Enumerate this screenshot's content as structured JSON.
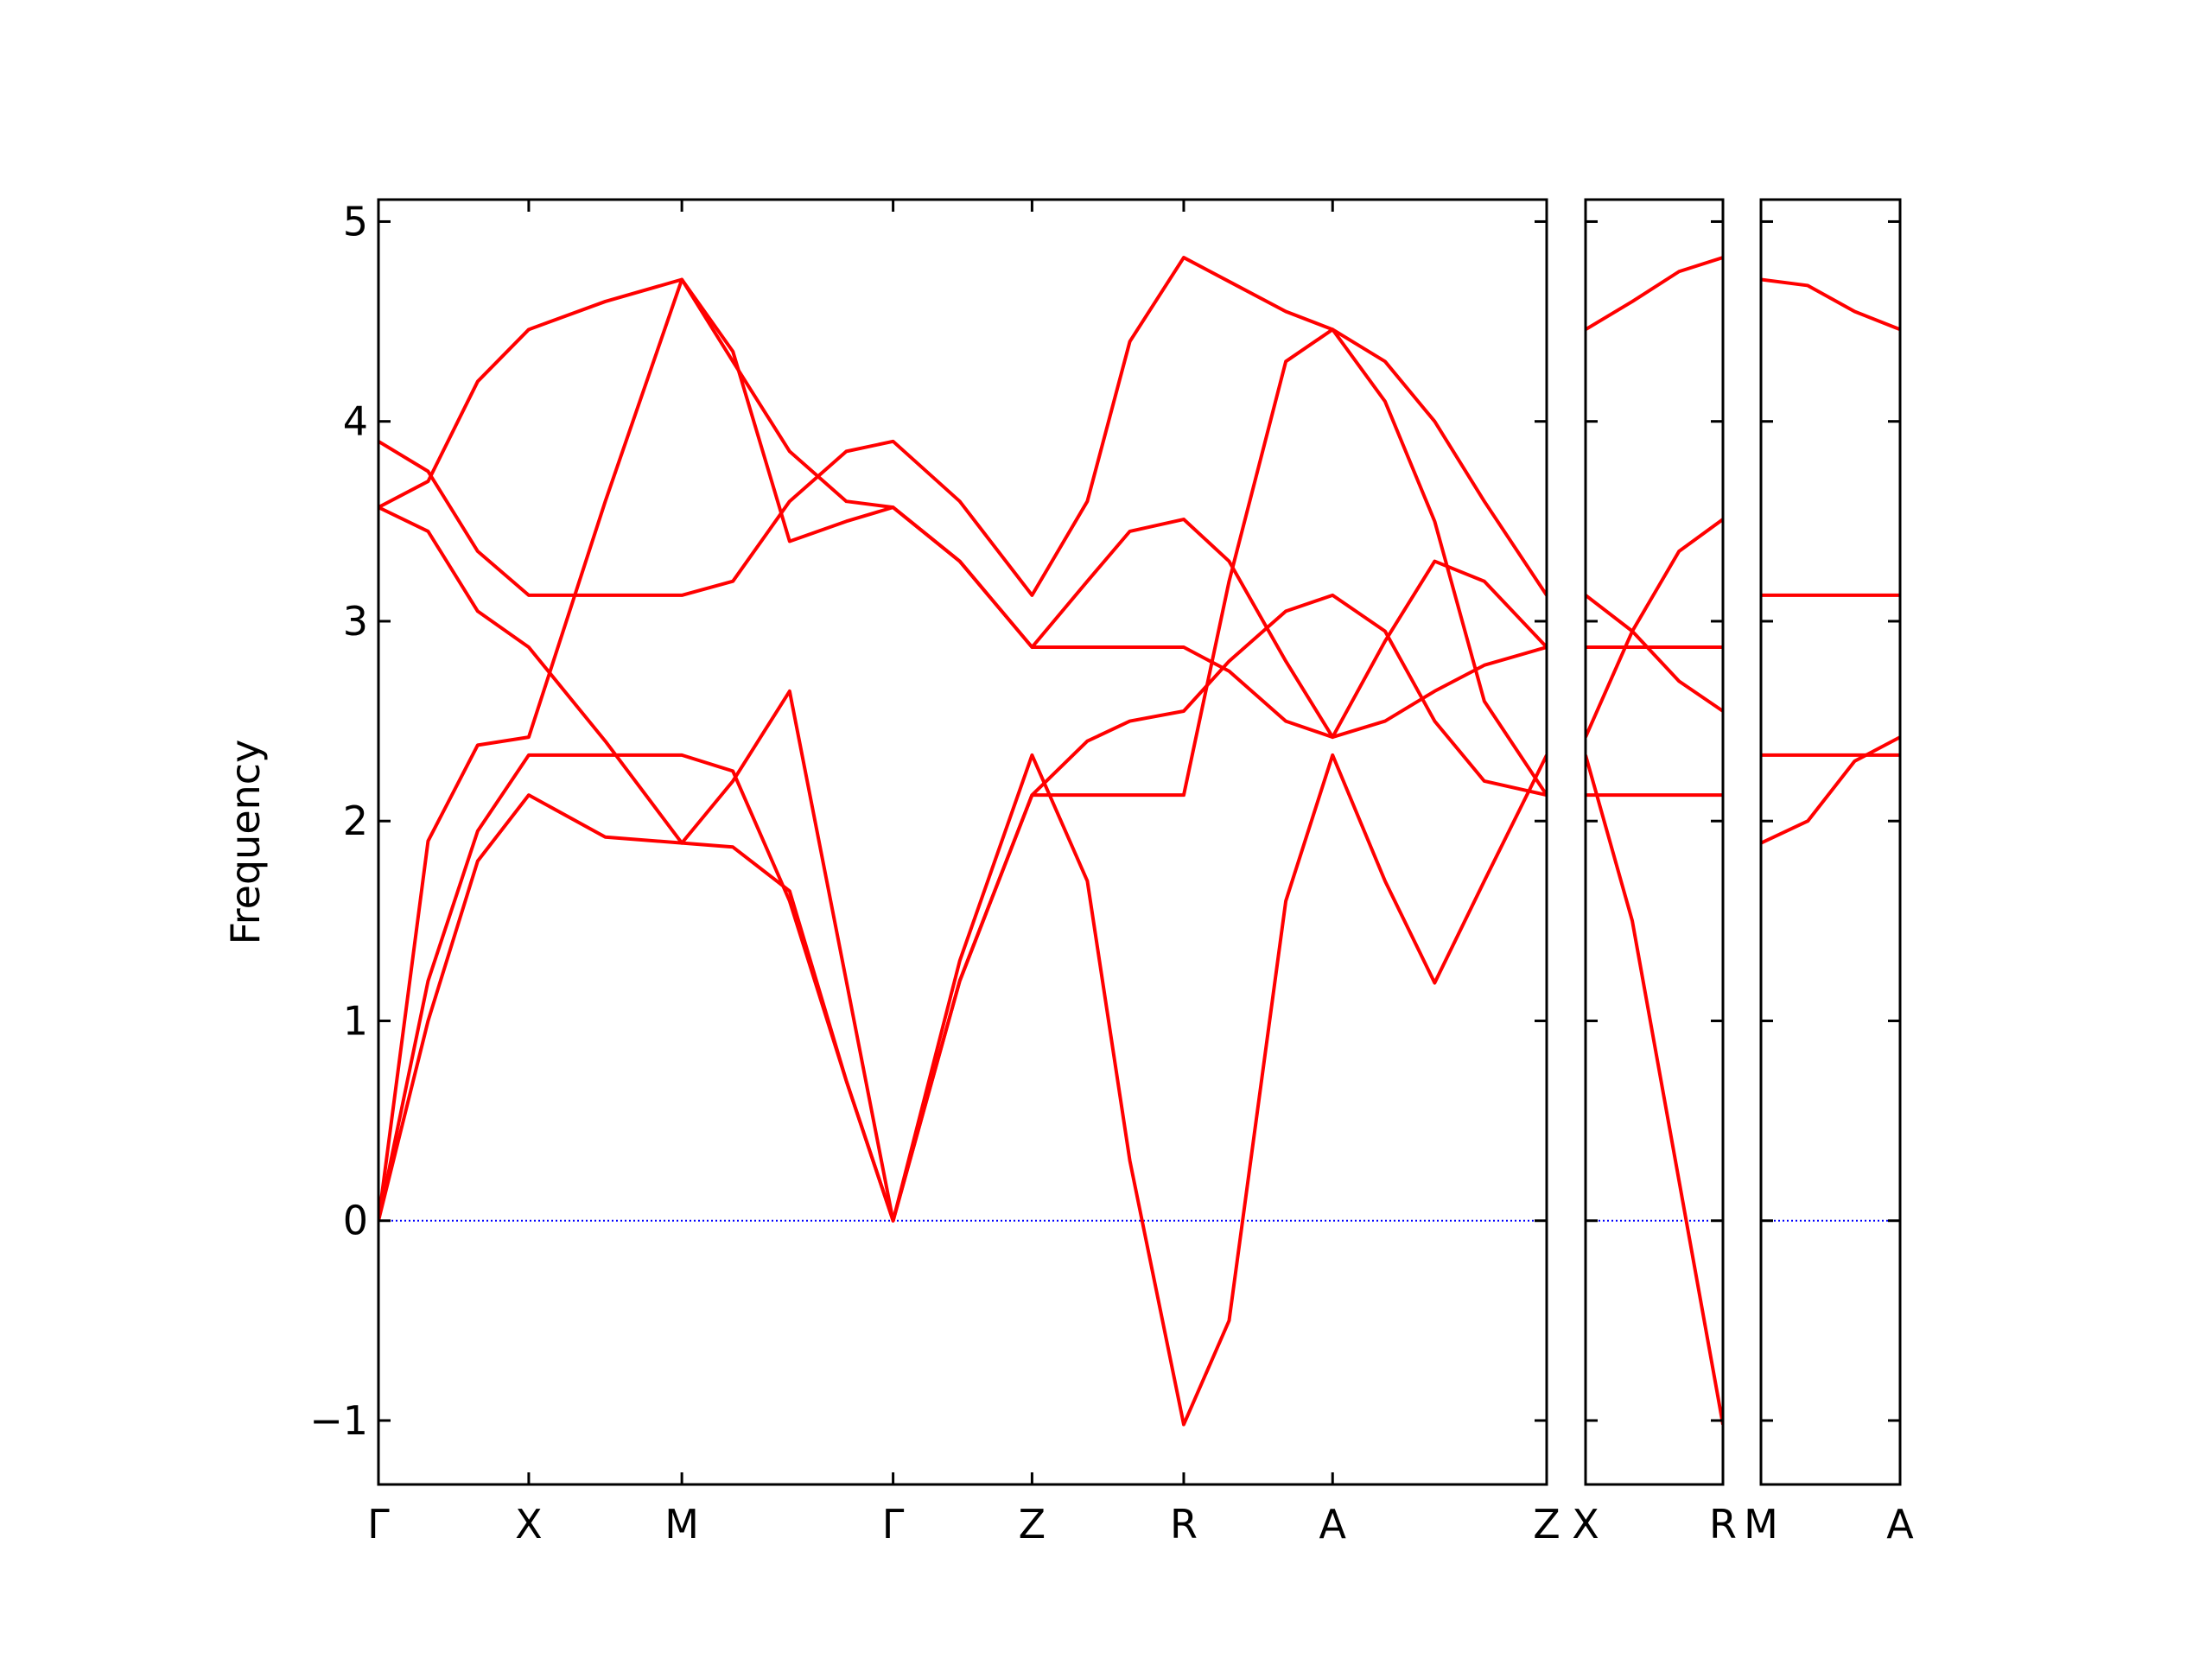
{
  "chart_data": [
    {
      "type": "line",
      "ylabel": "Frequency",
      "x": [
        0,
        0.35,
        0.7,
        1.06,
        1.6,
        2.14,
        2.5,
        2.9,
        3.3,
        3.63,
        4.1,
        4.61,
        5.0,
        5.3,
        5.68,
        6.0,
        6.4,
        6.73,
        7.1,
        7.45,
        7.8,
        8.24
      ],
      "xlim": [
        0,
        8.24
      ],
      "ylim": [
        -1.32,
        5.11
      ],
      "xticks": [
        {
          "value": 0,
          "label": "Γ"
        },
        {
          "value": 1.06,
          "label": "X"
        },
        {
          "value": 2.14,
          "label": "M"
        },
        {
          "value": 3.63,
          "label": "Γ"
        },
        {
          "value": 4.61,
          "label": "Z"
        },
        {
          "value": 5.68,
          "label": "R"
        },
        {
          "value": 6.73,
          "label": "A"
        },
        {
          "value": 8.24,
          "label": "Z"
        }
      ],
      "yticks": [
        {
          "value": -1,
          "label": "−1"
        },
        0,
        1,
        2,
        3,
        4,
        5
      ],
      "zero_line": {
        "value": 0,
        "color": "#0000ff"
      },
      "series": [
        {
          "color": "#ff0000",
          "values": [
            3.9,
            3.75,
            3.35,
            3.13,
            3.13,
            3.13,
            3.2,
            3.6,
            3.85,
            3.9,
            3.6,
            3.13,
            3.6,
            4.4,
            4.82,
            4.7,
            4.55,
            4.46,
            4.3,
            4.0,
            3.6,
            3.13
          ]
        },
        {
          "color": "#ff0000",
          "values": [
            3.57,
            3.7,
            4.2,
            4.46,
            4.6,
            4.71,
            4.3,
            3.85,
            3.6,
            3.57,
            3.3,
            2.87,
            3.2,
            3.45,
            3.51,
            3.3,
            2.8,
            2.42,
            2.9,
            3.3,
            3.2,
            2.87
          ]
        },
        {
          "color": "#ff0000",
          "values": [
            3.57,
            3.45,
            3.05,
            2.87,
            2.4,
            1.89,
            2.2,
            2.65,
            1.2,
            0,
            1.2,
            2.13,
            2.4,
            2.5,
            2.55,
            2.8,
            3.05,
            3.13,
            2.95,
            2.5,
            2.2,
            2.13
          ]
        },
        {
          "color": "#ff0000",
          "values": [
            0,
            1.9,
            2.38,
            2.42,
            3.6,
            4.71,
            4.35,
            3.4,
            3.5,
            3.57,
            3.3,
            2.87,
            2.87,
            2.87,
            2.87,
            2.75,
            2.5,
            2.42,
            2.5,
            2.65,
            2.78,
            2.87
          ]
        },
        {
          "color": "#ff0000",
          "values": [
            0,
            1.2,
            1.95,
            2.33,
            2.33,
            2.33,
            2.25,
            1.6,
            0.7,
            0,
            1.3,
            2.33,
            1.7,
            0.3,
            -1.02,
            -0.5,
            1.6,
            2.33,
            1.7,
            1.19,
            1.7,
            2.33
          ]
        },
        {
          "color": "#ff0000",
          "values": [
            0,
            1.0,
            1.8,
            2.13,
            1.92,
            1.89,
            1.87,
            1.65,
            0.7,
            0,
            1.2,
            2.13,
            2.13,
            2.13,
            2.13,
            3.2,
            4.3,
            4.46,
            4.1,
            3.5,
            2.6,
            2.13
          ]
        }
      ]
    },
    {
      "type": "line",
      "x": [
        0,
        0.33,
        0.66,
        0.97
      ],
      "xlim": [
        0,
        0.97
      ],
      "ylim": [
        -1.32,
        5.11
      ],
      "xticks": [
        {
          "value": 0,
          "label": "X"
        },
        {
          "value": 0.97,
          "label": "R"
        }
      ],
      "zero_line": {
        "value": 0,
        "color": "#0000ff"
      },
      "series": [
        {
          "color": "#ff0000",
          "values": [
            4.46,
            4.6,
            4.75,
            4.82
          ]
        },
        {
          "color": "#ff0000",
          "values": [
            3.13,
            2.95,
            2.7,
            2.55
          ]
        },
        {
          "color": "#ff0000",
          "values": [
            2.87,
            2.87,
            2.87,
            2.87
          ]
        },
        {
          "color": "#ff0000",
          "values": [
            2.42,
            2.95,
            3.35,
            3.51
          ]
        },
        {
          "color": "#ff0000",
          "values": [
            2.33,
            1.5,
            0.2,
            -1.02
          ]
        },
        {
          "color": "#ff0000",
          "values": [
            2.13,
            2.13,
            2.13,
            2.13
          ]
        }
      ]
    },
    {
      "type": "line",
      "x": [
        0,
        0.33,
        0.66,
        0.98
      ],
      "xlim": [
        0,
        0.98
      ],
      "ylim": [
        -1.32,
        5.11
      ],
      "xticks": [
        {
          "value": 0,
          "label": "M"
        },
        {
          "value": 0.98,
          "label": "A"
        }
      ],
      "zero_line": {
        "value": 0,
        "color": "#0000ff"
      },
      "series": [
        {
          "color": "#ff0000",
          "values": [
            4.71,
            4.68,
            4.55,
            4.46
          ]
        },
        {
          "color": "#ff0000",
          "values": [
            3.13,
            3.13,
            3.13,
            3.13
          ]
        },
        {
          "color": "#ff0000",
          "values": [
            2.33,
            2.33,
            2.33,
            2.33
          ]
        },
        {
          "color": "#ff0000",
          "values": [
            1.89,
            2.0,
            2.3,
            2.42
          ]
        }
      ]
    }
  ]
}
